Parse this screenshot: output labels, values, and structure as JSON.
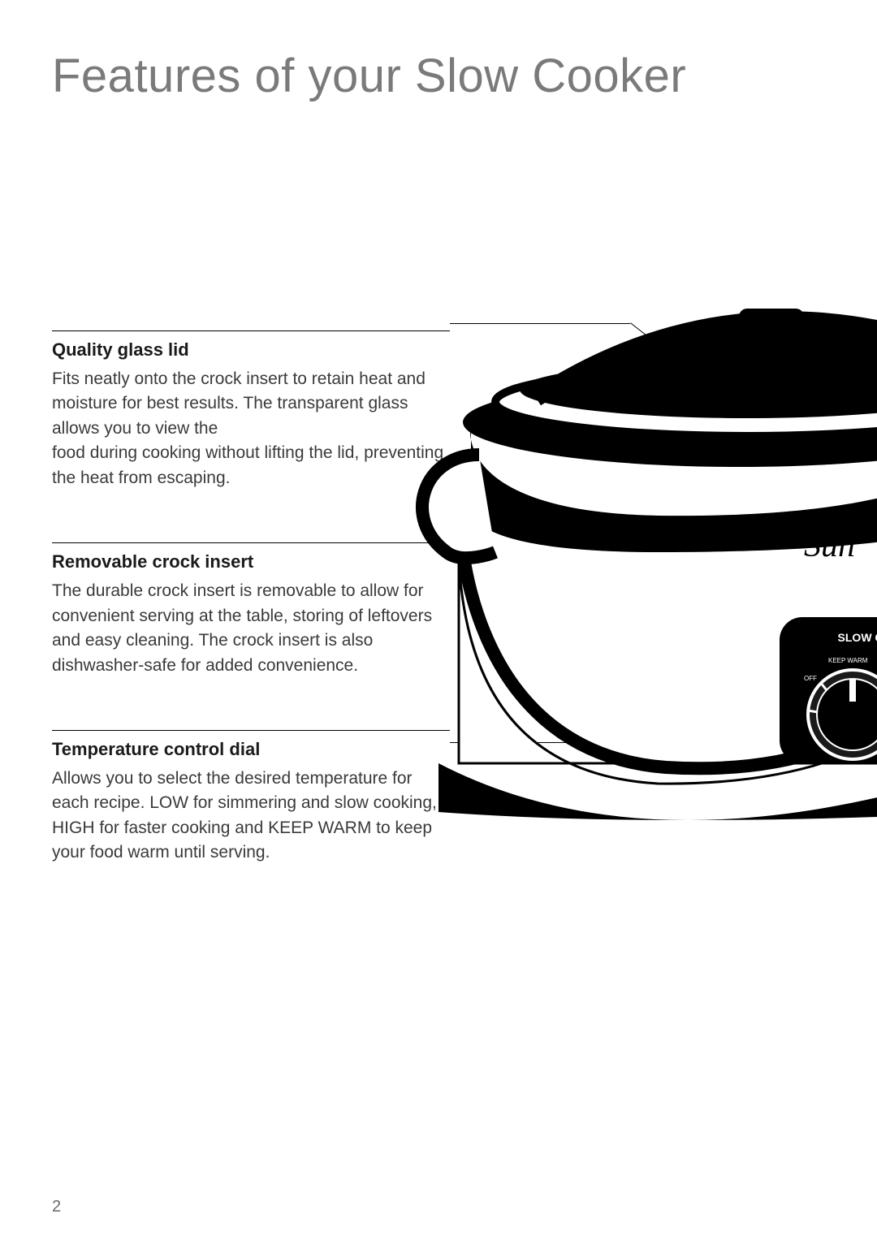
{
  "title": "Features of your Slow Cooker",
  "page_number": "2",
  "colors": {
    "title": "#7a7a7a",
    "heading": "#1a1a1a",
    "body": "#3a3a3a",
    "accent_red": "#b31b1b",
    "black": "#000000",
    "white": "#ffffff",
    "dial_gray": "#2b2b2b"
  },
  "fonts": {
    "title_size_pt": 44,
    "title_weight": 300,
    "heading_size_pt": 16,
    "heading_weight": 700,
    "body_size_pt": 16,
    "body_weight": 400
  },
  "features": [
    {
      "heading": "Quality glass lid",
      "body": "Fits neatly onto the crock insert to retain heat and moisture for best results. The transparent glass allows you to view the\nfood during cooking without lifting the lid, preventing the heat from escaping."
    },
    {
      "heading": "Removable crock insert",
      "body": "The durable crock insert is removable to allow for convenient serving at the table, storing of leftovers and easy cleaning. The crock insert is also dishwasher-safe for added convenience."
    },
    {
      "heading": "Temperature control dial",
      "body": "Allows you to select the desired temperature for each recipe. LOW for simmering and slow cooking, HIGH for faster cooking and KEEP WARM to keep your food warm until serving."
    }
  ],
  "illustration": {
    "brand_text": "Sun",
    "panel_label": "SLOW CO",
    "dial_labels": [
      "KEEP WARM",
      "OFF"
    ],
    "colors": {
      "body_fill": "#ffffff",
      "outline": "#000000",
      "panel_fill": "#000000",
      "dial_fill": "#1a1a1a",
      "accent": "#b31b1b"
    }
  }
}
